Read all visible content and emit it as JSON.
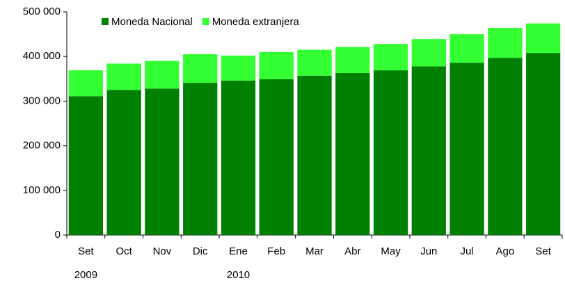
{
  "chart_data": {
    "type": "bar",
    "stacked": true,
    "categories": [
      "Set",
      "Oct",
      "Nov",
      "Dic",
      "Ene",
      "Feb",
      "Mar",
      "Abr",
      "May",
      "Jun",
      "Jul",
      "Ago",
      "Set"
    ],
    "years": [
      "2009",
      null,
      null,
      null,
      "2010",
      null,
      null,
      null,
      null,
      null,
      null,
      null,
      null
    ],
    "series": [
      {
        "name": "Moneda Nacional",
        "color": "#008000",
        "values": [
          311000,
          325000,
          328000,
          341000,
          346000,
          349000,
          357000,
          363000,
          369000,
          378000,
          386000,
          397000,
          408000
        ]
      },
      {
        "name": "Moneda extranjera",
        "color": "#33ff33",
        "values": [
          58000,
          59000,
          62000,
          64000,
          56000,
          61000,
          58000,
          58000,
          59000,
          61000,
          64000,
          67000,
          66000
        ]
      }
    ],
    "ylim": [
      0,
      500000
    ],
    "yticks": [
      {
        "value": 0,
        "label": "0"
      },
      {
        "value": 100000,
        "label": "100 000"
      },
      {
        "value": 200000,
        "label": "200 000"
      },
      {
        "value": 300000,
        "label": "300 000"
      },
      {
        "value": 400000,
        "label": "400 000"
      },
      {
        "value": 500000,
        "label": "500 000"
      }
    ],
    "grid": false,
    "legend": "top"
  }
}
